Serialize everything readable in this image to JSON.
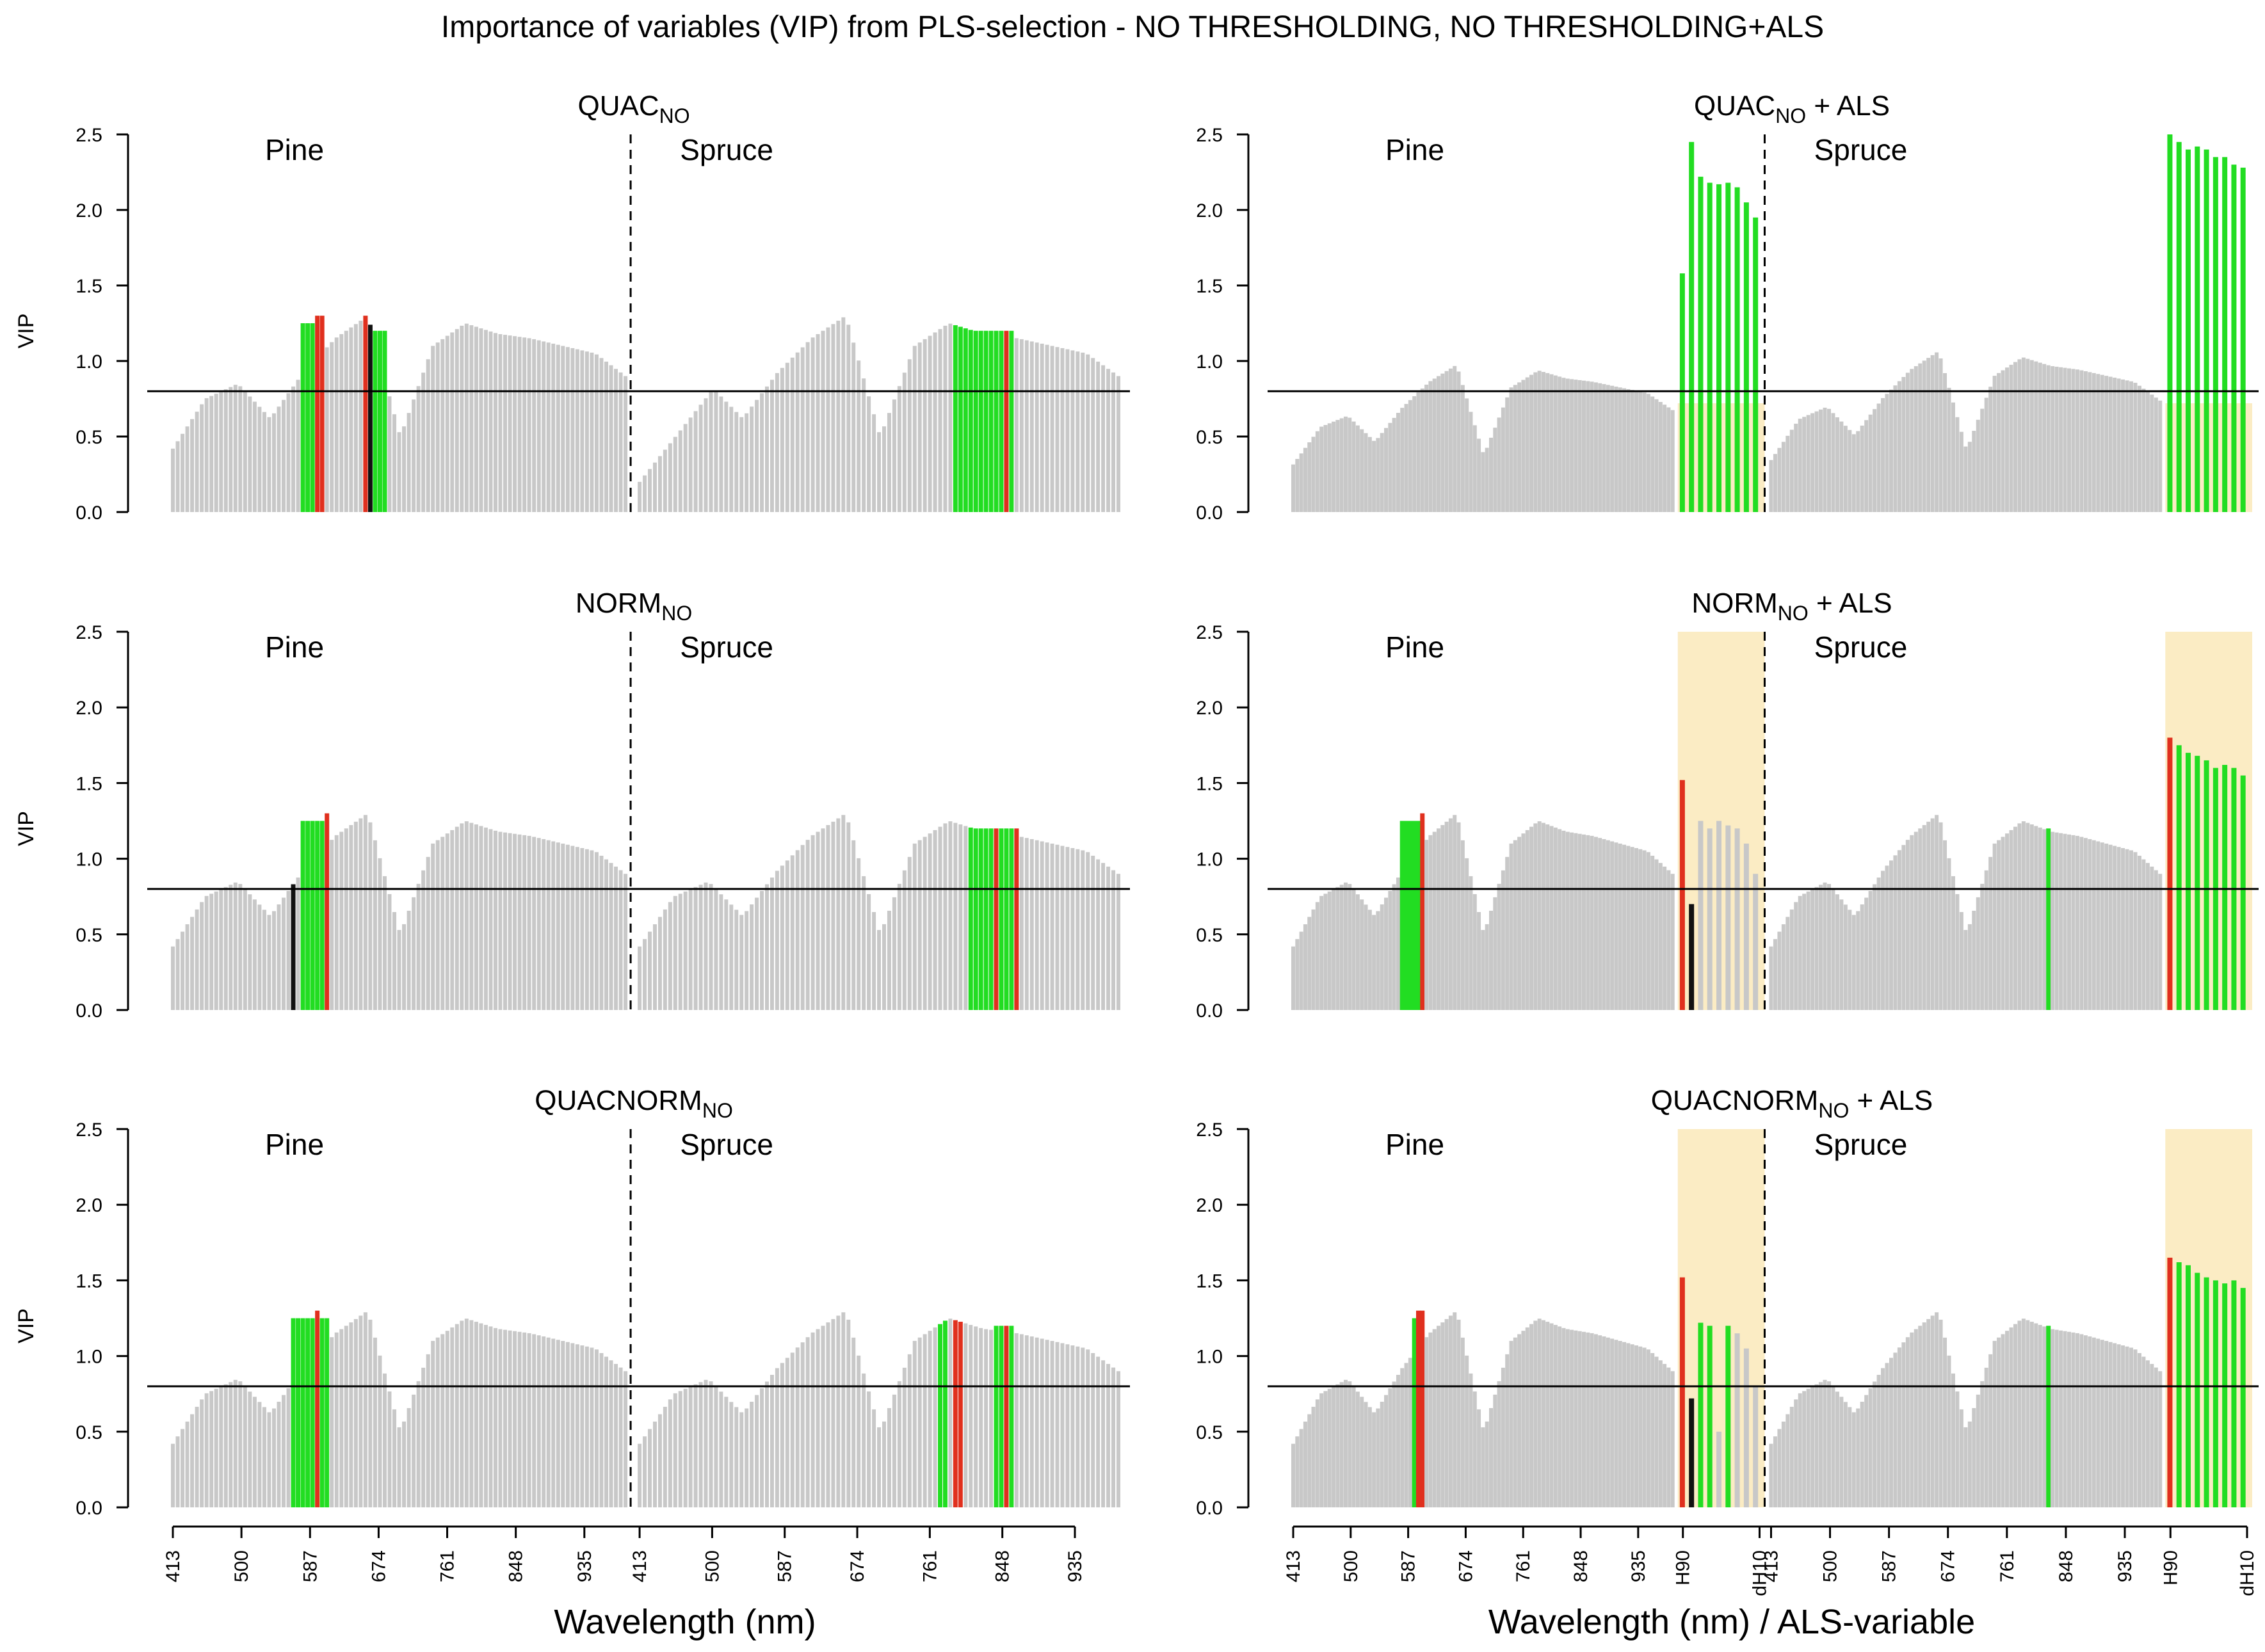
{
  "title": "Importance of variables (VIP) from PLS-selection - NO THRESHOLDING, NO THRESHOLDING+ALS",
  "chart_data": {
    "type": "bar",
    "y_label": "VIP",
    "x_label_left": "Wavelength (nm)",
    "x_label_right": "Wavelength (nm) / ALS-variable",
    "ylim": [
      0,
      2.5
    ],
    "y_ticks": [
      "0.0",
      "0.5",
      "1.0",
      "1.5",
      "2.0",
      "2.5"
    ],
    "threshold": 0.8,
    "group_labels": [
      "Pine",
      "Spruce"
    ],
    "x_ticks_left": [
      "413",
      "500",
      "587",
      "674",
      "761",
      "848",
      "935",
      "413",
      "500",
      "587",
      "674",
      "761",
      "848",
      "935"
    ],
    "x_ticks_right": [
      "413",
      "500",
      "587",
      "674",
      "761",
      "848",
      "935",
      "H90",
      "dH10",
      "413",
      "500",
      "587",
      "674",
      "761",
      "848",
      "935",
      "H90",
      "dH10"
    ],
    "band_pos": [
      0.0,
      0.0718,
      0.1436,
      0.2154,
      0.2872,
      0.359,
      0.4308,
      0.5026,
      0.5744,
      0.6462,
      0.718,
      0.7898,
      0.8615,
      0.9333,
      1.0
    ],
    "band_vals": [
      0.42,
      0.75,
      0.85,
      0.62,
      0.92,
      1.15,
      1.3,
      0.5,
      1.1,
      1.25,
      1.18,
      1.15,
      1.1,
      1.05,
      0.9
    ],
    "panels": [
      {
        "title_main": "QUAC",
        "title_sub": "NO",
        "title_suffix": "",
        "als": false,
        "pine_scale": 1.0,
        "spruce_scale": 1.0,
        "pine_dip": 0.8,
        "spruce_mid": 1.15,
        "pine_green": [
          0.285,
          0.338
        ],
        "pine_red": [
          0.324
        ],
        "pine_green2": [
          0.435,
          0.47
        ],
        "pine_red2": [
          0.43
        ],
        "spruce_green": [
          0.655,
          0.78
        ],
        "spruce_red": [
          0.765
        ],
        "black": [
          0.435
        ],
        "als_pine": [],
        "als_spruce": []
      },
      {
        "title_main": "QUAC",
        "title_sub": "NO",
        "title_suffix": " + ALS",
        "als": true,
        "pine_scale": 0.75,
        "spruce_scale": 0.82,
        "pine_dip": 0.7,
        "spruce_mid": 0.9,
        "pine_green": [
          0.72,
          0.72
        ],
        "pine_red": [],
        "pine_green2": [],
        "pine_red2": [],
        "spruce_green": [
          0.88,
          0.88
        ],
        "spruce_red": [],
        "black": [],
        "als_pine": [
          1.58,
          2.45,
          2.22,
          2.18,
          2.17,
          2.18,
          2.15,
          2.05,
          1.95
        ],
        "als_pine_colors": [
          "green",
          "green",
          "green",
          "green",
          "green",
          "green",
          "green",
          "green",
          "green"
        ],
        "als_spruce": [
          2.5,
          2.45,
          2.4,
          2.42,
          2.4,
          2.35,
          2.35,
          2.3,
          2.28
        ],
        "als_spruce_colors": [
          "green",
          "green",
          "green",
          "green",
          "green",
          "green",
          "green",
          "green",
          "green"
        ]
      },
      {
        "title_main": "NORM",
        "title_sub": "NO",
        "title_suffix": "",
        "als": false,
        "pine_scale": 1.0,
        "spruce_scale": 1.0,
        "pine_dip": 0.0,
        "spruce_mid": 0.0,
        "pine_green": [
          0.285,
          0.35
        ],
        "pine_red": [
          0.345
        ],
        "pine_green2": [],
        "pine_red2": [],
        "spruce_green": [
          0.69,
          0.78
        ],
        "spruce_red": [
          0.745,
          0.785
        ],
        "black": [
          0.265
        ],
        "als_pine": [],
        "als_spruce": []
      },
      {
        "title_main": "NORM",
        "title_sub": "NO",
        "title_suffix": " + ALS",
        "als": true,
        "pine_scale": 1.0,
        "spruce_scale": 1.0,
        "pine_dip": 0.0,
        "spruce_mid": 0.0,
        "pine_green": [
          0.285,
          0.345
        ],
        "pine_red": [
          0.34
        ],
        "pine_green2": [],
        "pine_red2": [],
        "spruce_green": [
          0.71,
          0.72
        ],
        "spruce_red": [],
        "black": [],
        "als_pine": [
          1.52,
          0.7,
          1.25,
          1.2,
          1.25,
          1.22,
          1.2,
          1.1,
          0.9
        ],
        "als_pine_colors": [
          "red",
          "black",
          "grey",
          "grey",
          "grey",
          "grey",
          "grey",
          "grey",
          "grey"
        ],
        "als_spruce": [
          1.8,
          1.75,
          1.7,
          1.68,
          1.65,
          1.6,
          1.62,
          1.6,
          1.55
        ],
        "als_spruce_colors": [
          "red",
          "green",
          "green",
          "green",
          "green",
          "green",
          "green",
          "green",
          "green"
        ]
      },
      {
        "title_main": "QUACNORM",
        "title_sub": "NO",
        "title_suffix": "",
        "als": false,
        "pine_scale": 1.0,
        "spruce_scale": 1.0,
        "pine_dip": 0.0,
        "spruce_mid": 0.0,
        "pine_green": [
          0.265,
          0.35
        ],
        "pine_red": [
          0.32
        ],
        "pine_green2": [],
        "pine_red2": [],
        "spruce_green": [
          0.62,
          0.64,
          0.74,
          0.78
        ],
        "spruce_red": [
          0.665,
          0.765
        ],
        "black": [],
        "als_pine": [],
        "als_spruce": []
      },
      {
        "title_main": "QUACNORM",
        "title_sub": "NO",
        "title_suffix": " + ALS",
        "als": true,
        "pine_scale": 1.0,
        "spruce_scale": 1.0,
        "pine_dip": 0.0,
        "spruce_mid": 0.0,
        "pine_green": [
          0.315,
          0.34
        ],
        "pine_red": [
          0.335
        ],
        "pine_green2": [],
        "pine_red2": [],
        "spruce_green": [
          0.71,
          0.72
        ],
        "spruce_red": [],
        "black": [],
        "als_pine": [
          1.52,
          0.72,
          1.22,
          1.2,
          0.5,
          1.2,
          1.15,
          1.05,
          0.8
        ],
        "als_pine_colors": [
          "red",
          "black",
          "green",
          "green",
          "grey",
          "green",
          "grey",
          "grey",
          "grey"
        ],
        "als_spruce": [
          1.65,
          1.62,
          1.6,
          1.55,
          1.52,
          1.5,
          1.48,
          1.5,
          1.45
        ],
        "als_spruce_colors": [
          "red",
          "green",
          "green",
          "green",
          "green",
          "green",
          "green",
          "green",
          "green"
        ]
      }
    ]
  }
}
